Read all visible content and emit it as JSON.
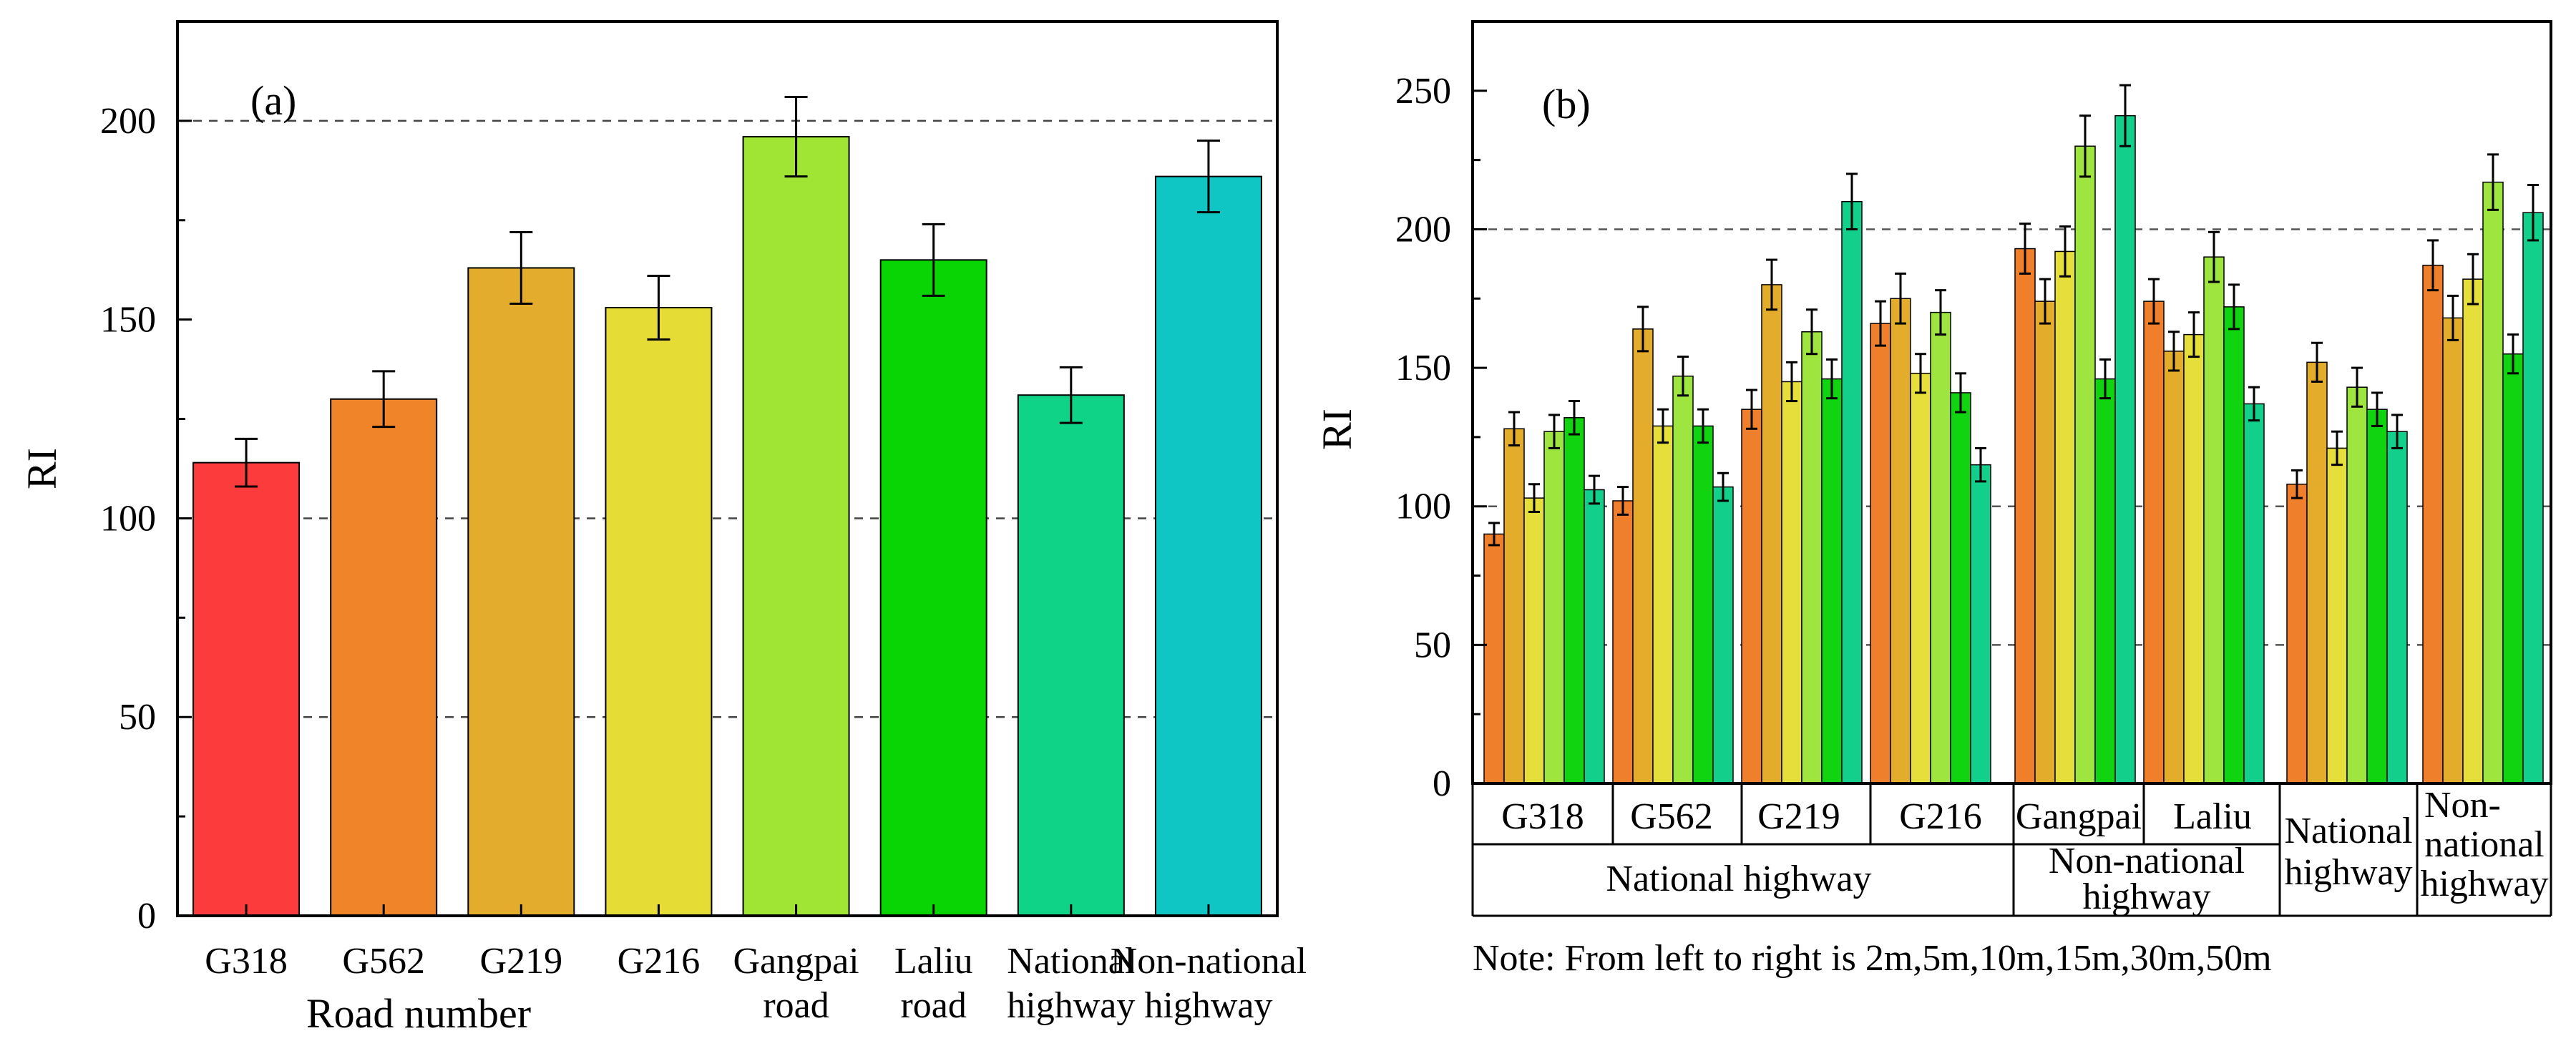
{
  "chart_data": [
    {
      "type": "bar",
      "panel_label": "(a)",
      "ylabel": "RI",
      "xlabel": "Road number",
      "ylim": [
        0,
        225
      ],
      "yticks": [
        0,
        50,
        100,
        150,
        200
      ],
      "reference_lines": [
        {
          "y": 200,
          "style": "dashed"
        },
        {
          "y": 100,
          "style": "dashed"
        },
        {
          "y": 50,
          "style": "dashed"
        }
      ],
      "categories": [
        [
          "G318"
        ],
        [
          "G562"
        ],
        [
          "G219"
        ],
        [
          "G216"
        ],
        [
          "Gangpai",
          "road"
        ],
        [
          "Laliu",
          "road"
        ],
        [
          "National",
          "highway"
        ],
        [
          "Non-national",
          "highway"
        ]
      ],
      "values": [
        114,
        130,
        163,
        153,
        196,
        165,
        131,
        186
      ],
      "errors": [
        6,
        7,
        9,
        8,
        10,
        9,
        7,
        9
      ],
      "colors": [
        "#fb3b3c",
        "#ef8528",
        "#e3ac2d",
        "#e5dd35",
        "#a1e534",
        "#0ad504",
        "#0fd387",
        "#0fc6c4"
      ]
    },
    {
      "type": "bar",
      "panel_label": "(b)",
      "ylabel": "RI",
      "ylim": [
        0,
        275
      ],
      "yticks": [
        0,
        50,
        100,
        150,
        200,
        250
      ],
      "reference_lines": [
        {
          "y": 200,
          "style": "dashed"
        },
        {
          "y": 100,
          "style": "dashed"
        },
        {
          "y": 50,
          "style": "dashed"
        }
      ],
      "series_names": [
        "2m",
        "5m",
        "10m",
        "15m",
        "30m",
        "50m"
      ],
      "series_colors": [
        "#ef7f2a",
        "#e3ad2b",
        "#e6de3a",
        "#9fe53f",
        "#10d410",
        "#13cf8c"
      ],
      "groups": [
        {
          "label": [
            "G318"
          ],
          "values": [
            90,
            128,
            103,
            127,
            132,
            106
          ],
          "errors": [
            4,
            6,
            5,
            6,
            6,
            5
          ]
        },
        {
          "label": [
            "G562"
          ],
          "values": [
            102,
            164,
            129,
            147,
            129,
            107
          ],
          "errors": [
            5,
            8,
            6,
            7,
            6,
            5
          ]
        },
        {
          "label": [
            "G219"
          ],
          "values": [
            135,
            180,
            145,
            163,
            146,
            210
          ],
          "errors": [
            7,
            9,
            7,
            8,
            7,
            10
          ]
        },
        {
          "label": [
            "G216"
          ],
          "values": [
            166,
            175,
            148,
            170,
            141,
            115
          ],
          "errors": [
            8,
            9,
            7,
            8,
            7,
            6
          ]
        },
        {
          "label": [
            "Gangpai"
          ],
          "values": [
            193,
            174,
            192,
            230,
            146,
            241
          ],
          "errors": [
            9,
            8,
            9,
            11,
            7,
            11
          ]
        },
        {
          "label": [
            "Laliu"
          ],
          "values": [
            174,
            156,
            162,
            190,
            172,
            137
          ],
          "errors": [
            8,
            7,
            8,
            9,
            8,
            6
          ]
        },
        {
          "label": [
            "National",
            "highway"
          ],
          "values": [
            108,
            152,
            121,
            143,
            135,
            127
          ],
          "errors": [
            5,
            7,
            6,
            7,
            6,
            6
          ]
        },
        {
          "label": [
            "Non-",
            "national",
            "highway"
          ],
          "values": [
            187,
            168,
            182,
            217,
            155,
            206
          ],
          "errors": [
            9,
            8,
            9,
            10,
            7,
            10
          ]
        }
      ],
      "category_groups": [
        {
          "label": [
            "National highway"
          ],
          "span": [
            0,
            3
          ]
        },
        {
          "label": [
            "Non-national",
            "highway"
          ],
          "span": [
            4,
            5
          ]
        }
      ],
      "note": "Note: From left to right is 2m,5m,10m,15m,30m,50m"
    }
  ]
}
